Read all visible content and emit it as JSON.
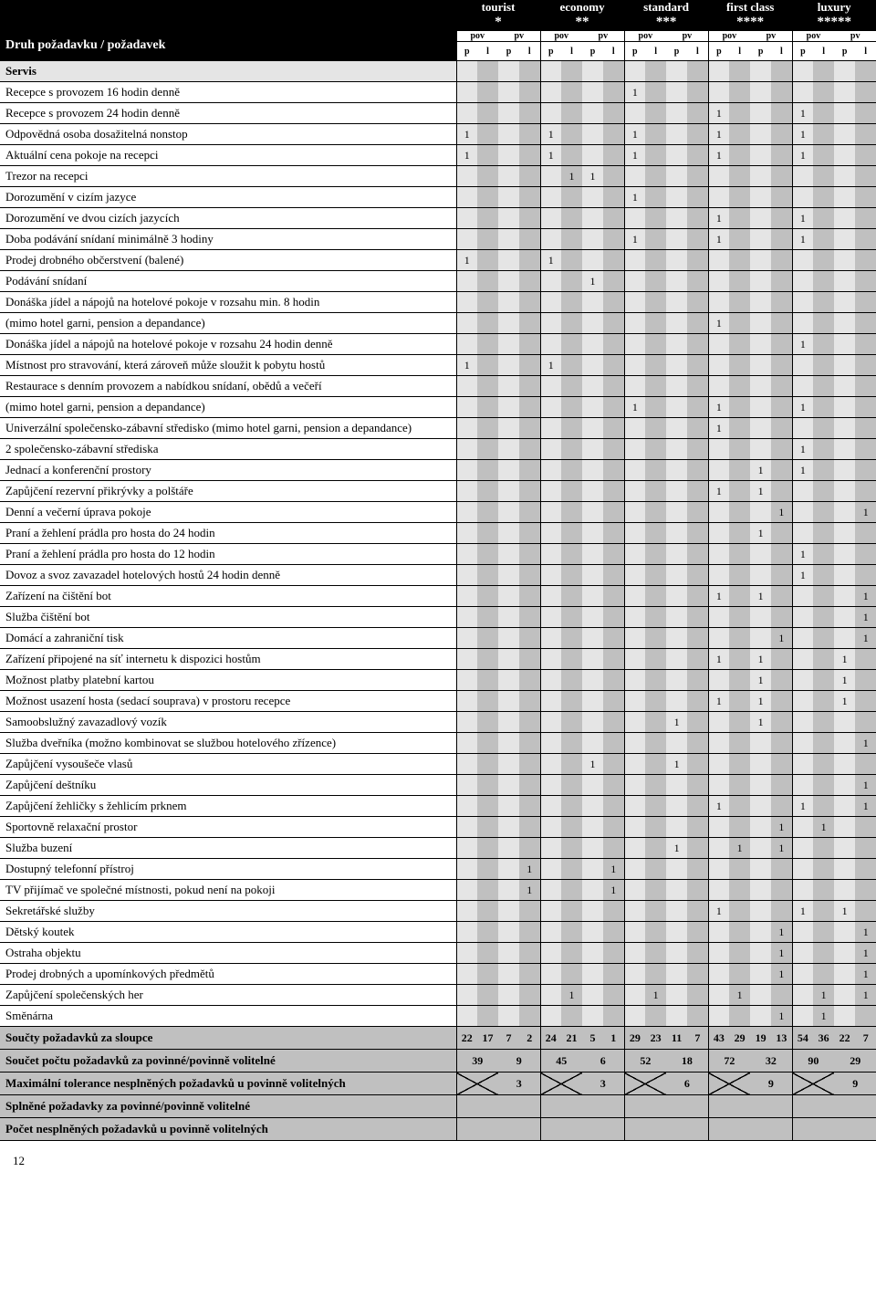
{
  "header": {
    "title": "Druh požadavku / požadavek",
    "categories": [
      "tourist",
      "economy",
      "standard",
      "first class",
      "luxury"
    ],
    "stars": [
      "*",
      "**",
      "***",
      "****",
      "*****"
    ],
    "sub1": [
      "pov",
      "pv"
    ],
    "sub2": [
      "p",
      "l"
    ]
  },
  "section": "Servis",
  "rows": [
    {
      "label": "Recepce s provozem 16 hodin denně",
      "c": [
        "",
        "",
        "",
        "",
        "",
        "",
        "",
        "",
        "1",
        "",
        "",
        "",
        "",
        "",
        "",
        "",
        "",
        "",
        "",
        ""
      ]
    },
    {
      "label": "Recepce s provozem 24 hodin denně",
      "c": [
        "",
        "",
        "",
        "",
        "",
        "",
        "",
        "",
        "",
        "",
        "",
        "",
        "1",
        "",
        "",
        "",
        "1",
        "",
        "",
        ""
      ]
    },
    {
      "label": "Odpovědná osoba dosažitelná nonstop",
      "c": [
        "1",
        "",
        "",
        "",
        "1",
        "",
        "",
        "",
        "1",
        "",
        "",
        "",
        "1",
        "",
        "",
        "",
        "1",
        "",
        "",
        ""
      ]
    },
    {
      "label": "Aktuální cena pokoje na recepci",
      "c": [
        "1",
        "",
        "",
        "",
        "1",
        "",
        "",
        "",
        "1",
        "",
        "",
        "",
        "1",
        "",
        "",
        "",
        "1",
        "",
        "",
        ""
      ]
    },
    {
      "label": "Trezor na recepci",
      "c": [
        "",
        "",
        "",
        "",
        "",
        "1",
        "1",
        "",
        "",
        "",
        "",
        "",
        "",
        "",
        "",
        "",
        "",
        "",
        "",
        ""
      ]
    },
    {
      "label": "Dorozumění v cizím jazyce",
      "c": [
        "",
        "",
        "",
        "",
        "",
        "",
        "",
        "",
        "1",
        "",
        "",
        "",
        "",
        "",
        "",
        "",
        "",
        "",
        "",
        ""
      ]
    },
    {
      "label": "Dorozumění ve dvou cizích jazycích",
      "c": [
        "",
        "",
        "",
        "",
        "",
        "",
        "",
        "",
        "",
        "",
        "",
        "",
        "1",
        "",
        "",
        "",
        "1",
        "",
        "",
        ""
      ]
    },
    {
      "label": "Doba podávání snídaní minimálně 3 hodiny",
      "c": [
        "",
        "",
        "",
        "",
        "",
        "",
        "",
        "",
        "1",
        "",
        "",
        "",
        "1",
        "",
        "",
        "",
        "1",
        "",
        "",
        ""
      ]
    },
    {
      "label": "Prodej drobného občerstvení (balené)",
      "c": [
        "1",
        "",
        "",
        "",
        "1",
        "",
        "",
        "",
        "",
        "",
        "",
        "",
        "",
        "",
        "",
        "",
        "",
        "",
        "",
        ""
      ]
    },
    {
      "label": "Podávání snídaní",
      "c": [
        "",
        "",
        "",
        "",
        "",
        "",
        "1",
        "",
        "",
        "",
        "",
        "",
        "",
        "",
        "",
        "",
        "",
        "",
        "",
        ""
      ]
    },
    {
      "label": "Donáška jídel a nápojů na hotelové pokoje v rozsahu min. 8 hodin",
      "c": [
        "",
        "",
        "",
        "",
        "",
        "",
        "",
        "",
        "",
        "",
        "",
        "",
        "",
        "",
        "",
        "",
        "",
        "",
        "",
        ""
      ]
    },
    {
      "label": "(mimo hotel garni, pension a depandance)",
      "c": [
        "",
        "",
        "",
        "",
        "",
        "",
        "",
        "",
        "",
        "",
        "",
        "",
        "1",
        "",
        "",
        "",
        "",
        "",
        "",
        ""
      ]
    },
    {
      "label": "Donáška jídel a nápojů na hotelové pokoje v rozsahu 24 hodin denně",
      "c": [
        "",
        "",
        "",
        "",
        "",
        "",
        "",
        "",
        "",
        "",
        "",
        "",
        "",
        "",
        "",
        "",
        "1",
        "",
        "",
        ""
      ]
    },
    {
      "label": "Místnost pro stravování, která zároveň může sloužit k pobytu hostů",
      "c": [
        "1",
        "",
        "",
        "",
        "1",
        "",
        "",
        "",
        "",
        "",
        "",
        "",
        "",
        "",
        "",
        "",
        "",
        "",
        "",
        ""
      ]
    },
    {
      "label": "Restaurace s denním provozem a nabídkou snídaní, obědů a večeří",
      "c": [
        "",
        "",
        "",
        "",
        "",
        "",
        "",
        "",
        "",
        "",
        "",
        "",
        "",
        "",
        "",
        "",
        "",
        "",
        "",
        ""
      ]
    },
    {
      "label": "(mimo hotel garni, pension a depandance)",
      "c": [
        "",
        "",
        "",
        "",
        "",
        "",
        "",
        "",
        "1",
        "",
        "",
        "",
        "1",
        "",
        "",
        "",
        "1",
        "",
        "",
        ""
      ]
    },
    {
      "label": "Univerzální společensko-zábavní středisko (mimo hotel garni, pension a depandance)",
      "c": [
        "",
        "",
        "",
        "",
        "",
        "",
        "",
        "",
        "",
        "",
        "",
        "",
        "1",
        "",
        "",
        "",
        "",
        "",
        "",
        ""
      ]
    },
    {
      "label": "2 společensko-zábavní střediska",
      "c": [
        "",
        "",
        "",
        "",
        "",
        "",
        "",
        "",
        "",
        "",
        "",
        "",
        "",
        "",
        "",
        "",
        "1",
        "",
        "",
        ""
      ]
    },
    {
      "label": "Jednací a konferenční prostory",
      "c": [
        "",
        "",
        "",
        "",
        "",
        "",
        "",
        "",
        "",
        "",
        "",
        "",
        "",
        "",
        "1",
        "",
        "1",
        "",
        "",
        ""
      ]
    },
    {
      "label": "Zapůjčení rezervní přikrývky a polštáře",
      "c": [
        "",
        "",
        "",
        "",
        "",
        "",
        "",
        "",
        "",
        "",
        "",
        "",
        "1",
        "",
        "1",
        "",
        "",
        "",
        "",
        ""
      ]
    },
    {
      "label": "Denní a večerní úprava pokoje",
      "c": [
        "",
        "",
        "",
        "",
        "",
        "",
        "",
        "",
        "",
        "",
        "",
        "",
        "",
        "",
        "",
        "1",
        "",
        "",
        "",
        "1"
      ]
    },
    {
      "label": "Praní a žehlení prádla pro hosta do 24 hodin",
      "c": [
        "",
        "",
        "",
        "",
        "",
        "",
        "",
        "",
        "",
        "",
        "",
        "",
        "",
        "",
        "1",
        "",
        "",
        "",
        "",
        ""
      ]
    },
    {
      "label": "Praní a žehlení prádla pro hosta do 12 hodin",
      "c": [
        "",
        "",
        "",
        "",
        "",
        "",
        "",
        "",
        "",
        "",
        "",
        "",
        "",
        "",
        "",
        "",
        "1",
        "",
        "",
        ""
      ]
    },
    {
      "label": "Dovoz a svoz zavazadel hotelových hostů 24 hodin denně",
      "c": [
        "",
        "",
        "",
        "",
        "",
        "",
        "",
        "",
        "",
        "",
        "",
        "",
        "",
        "",
        "",
        "",
        "1",
        "",
        "",
        ""
      ]
    },
    {
      "label": "Zařízení na čištění bot",
      "c": [
        "",
        "",
        "",
        "",
        "",
        "",
        "",
        "",
        "",
        "",
        "",
        "",
        "1",
        "",
        "1",
        "",
        "",
        "",
        "",
        "1"
      ]
    },
    {
      "label": "Služba čištění bot",
      "c": [
        "",
        "",
        "",
        "",
        "",
        "",
        "",
        "",
        "",
        "",
        "",
        "",
        "",
        "",
        "",
        "",
        "",
        "",
        "",
        "1"
      ]
    },
    {
      "label": "Domácí a zahraniční tisk",
      "c": [
        "",
        "",
        "",
        "",
        "",
        "",
        "",
        "",
        "",
        "",
        "",
        "",
        "",
        "",
        "",
        "1",
        "",
        "",
        "",
        "1"
      ]
    },
    {
      "label": "Zařízení připojené na síť internetu k dispozici hostům",
      "c": [
        "",
        "",
        "",
        "",
        "",
        "",
        "",
        "",
        "",
        "",
        "",
        "",
        "1",
        "",
        "1",
        "",
        "",
        "",
        "1",
        ""
      ]
    },
    {
      "label": "Možnost platby platební kartou",
      "c": [
        "",
        "",
        "",
        "",
        "",
        "",
        "",
        "",
        "",
        "",
        "",
        "",
        "",
        "",
        "1",
        "",
        "",
        "",
        "1",
        ""
      ]
    },
    {
      "label": "Možnost usazení hosta (sedací souprava) v prostoru recepce",
      "c": [
        "",
        "",
        "",
        "",
        "",
        "",
        "",
        "",
        "",
        "",
        "",
        "",
        "1",
        "",
        "1",
        "",
        "",
        "",
        "1",
        ""
      ]
    },
    {
      "label": "Samoobslužný zavazadlový vozík",
      "c": [
        "",
        "",
        "",
        "",
        "",
        "",
        "",
        "",
        "",
        "",
        "1",
        "",
        "",
        "",
        "1",
        "",
        "",
        "",
        "",
        ""
      ]
    },
    {
      "label": "Služba dveřníka (možno kombinovat se službou hotelového zřízence)",
      "c": [
        "",
        "",
        "",
        "",
        "",
        "",
        "",
        "",
        "",
        "",
        "",
        "",
        "",
        "",
        "",
        "",
        "",
        "",
        "",
        "1"
      ]
    },
    {
      "label": "Zapůjčení vysoušeče vlasů",
      "c": [
        "",
        "",
        "",
        "",
        "",
        "",
        "1",
        "",
        "",
        "",
        "1",
        "",
        "",
        "",
        "",
        "",
        "",
        "",
        "",
        ""
      ]
    },
    {
      "label": "Zapůjčení deštníku",
      "c": [
        "",
        "",
        "",
        "",
        "",
        "",
        "",
        "",
        "",
        "",
        "",
        "",
        "",
        "",
        "",
        "",
        "",
        "",
        "",
        "1"
      ]
    },
    {
      "label": "Zapůjčení žehličky s žehlicím prknem",
      "c": [
        "",
        "",
        "",
        "",
        "",
        "",
        "",
        "",
        "",
        "",
        "",
        "",
        "1",
        "",
        "",
        "",
        "1",
        "",
        "",
        "1"
      ]
    },
    {
      "label": "Sportovně relaxační prostor",
      "c": [
        "",
        "",
        "",
        "",
        "",
        "",
        "",
        "",
        "",
        "",
        "",
        "",
        "",
        "",
        "",
        "1",
        "",
        "1",
        "",
        ""
      ]
    },
    {
      "label": "Služba buzení",
      "c": [
        "",
        "",
        "",
        "",
        "",
        "",
        "",
        "",
        "",
        "",
        "1",
        "",
        "",
        "1",
        "",
        "1",
        "",
        "",
        "",
        ""
      ]
    },
    {
      "label": "Dostupný telefonní přístroj",
      "c": [
        "",
        "",
        "",
        "1",
        "",
        "",
        "",
        "1",
        "",
        "",
        "",
        "",
        "",
        "",
        "",
        "",
        "",
        "",
        "",
        ""
      ]
    },
    {
      "label": "TV přijímač ve společné místnosti, pokud není na pokoji",
      "c": [
        "",
        "",
        "",
        "1",
        "",
        "",
        "",
        "1",
        "",
        "",
        "",
        "",
        "",
        "",
        "",
        "",
        "",
        "",
        "",
        ""
      ]
    },
    {
      "label": "Sekretářské služby",
      "c": [
        "",
        "",
        "",
        "",
        "",
        "",
        "",
        "",
        "",
        "",
        "",
        "",
        "1",
        "",
        "",
        "",
        "1",
        "",
        "1",
        ""
      ]
    },
    {
      "label": "Dětský koutek",
      "c": [
        "",
        "",
        "",
        "",
        "",
        "",
        "",
        "",
        "",
        "",
        "",
        "",
        "",
        "",
        "",
        "1",
        "",
        "",
        "",
        "1"
      ]
    },
    {
      "label": "Ostraha objektu",
      "c": [
        "",
        "",
        "",
        "",
        "",
        "",
        "",
        "",
        "",
        "",
        "",
        "",
        "",
        "",
        "",
        "1",
        "",
        "",
        "",
        "1"
      ]
    },
    {
      "label": "Prodej drobných a upomínkových předmětů",
      "c": [
        "",
        "",
        "",
        "",
        "",
        "",
        "",
        "",
        "",
        "",
        "",
        "",
        "",
        "",
        "",
        "1",
        "",
        "",
        "",
        "1"
      ]
    },
    {
      "label": "Zapůjčení společenských her",
      "c": [
        "",
        "",
        "",
        "",
        "",
        "1",
        "",
        "",
        "",
        "1",
        "",
        "",
        "",
        "1",
        "",
        "",
        "",
        "1",
        "",
        "1"
      ]
    },
    {
      "label": "Směnárna",
      "c": [
        "",
        "",
        "",
        "",
        "",
        "",
        "",
        "",
        "",
        "",
        "",
        "",
        "",
        "",
        "",
        "1",
        "",
        "1",
        "",
        ""
      ]
    }
  ],
  "sumrows": [
    {
      "label": "Součty požadavků za sloupce",
      "cells": [
        "22",
        "17",
        "7",
        "2",
        "24",
        "21",
        "5",
        "1",
        "29",
        "23",
        "11",
        "7",
        "43",
        "29",
        "19",
        "13",
        "54",
        "36",
        "22",
        "7"
      ],
      "type": "single"
    },
    {
      "label": "Součet počtu požadavků za povinné/povinně volitelné",
      "pairs": [
        [
          "39",
          "9"
        ],
        [
          "45",
          "6"
        ],
        [
          "52",
          "18"
        ],
        [
          "72",
          "32"
        ],
        [
          "90",
          "29"
        ]
      ],
      "type": "pair"
    },
    {
      "label": "Maximální tolerance nesplněných požadavků u povinně volitelných",
      "pairs": [
        [
          "X",
          "3"
        ],
        [
          "X",
          "3"
        ],
        [
          "X",
          "6"
        ],
        [
          "X",
          "9"
        ],
        [
          "X",
          "9"
        ]
      ],
      "type": "pair"
    },
    {
      "label": "Splněné požadavky za povinné/povinně volitelné",
      "pairs": [
        [
          "",
          ""
        ],
        [
          "",
          ""
        ],
        [
          "",
          ""
        ],
        [
          "",
          ""
        ],
        [
          "",
          ""
        ]
      ],
      "type": "pair"
    },
    {
      "label": "Počet nesplněných požadavků u povinně volitelných",
      "pairs": [
        [
          "",
          ""
        ],
        [
          "",
          ""
        ],
        [
          "",
          ""
        ],
        [
          "",
          ""
        ],
        [
          "",
          ""
        ]
      ],
      "type": "pair"
    }
  ],
  "pagenum": "12"
}
